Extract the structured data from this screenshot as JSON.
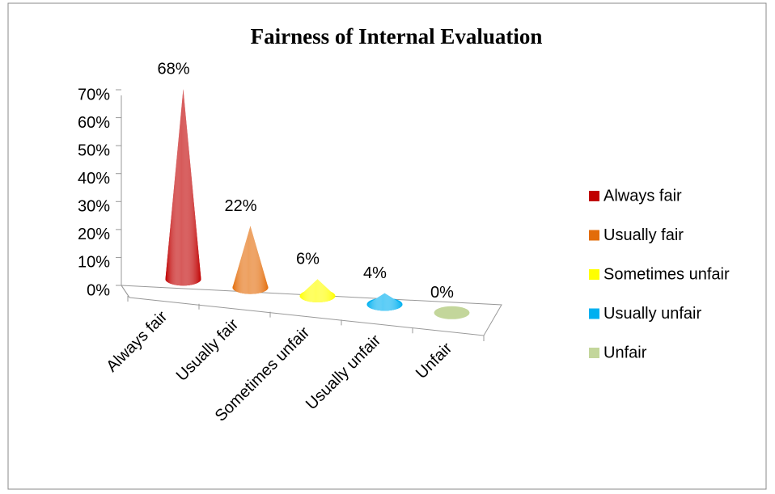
{
  "chart_data": {
    "type": "cone",
    "title": "Fairness of Internal Evaluation",
    "categories": [
      "Always fair",
      "Usually fair",
      "Sometimes unfair",
      "Usually unfair",
      "Unfair"
    ],
    "values": [
      68,
      22,
      6,
      4,
      0
    ],
    "value_labels": [
      "68%",
      "22%",
      "6%",
      "4%",
      "0%"
    ],
    "colors": [
      "#c00000",
      "#e36c09",
      "#ffff00",
      "#00b0f0",
      "#c3d69b"
    ],
    "ylim": [
      0,
      70
    ],
    "yticks": [
      {
        "value": 0,
        "label": "0%"
      },
      {
        "value": 10,
        "label": "10%"
      },
      {
        "value": 20,
        "label": "20%"
      },
      {
        "value": 30,
        "label": "30%"
      },
      {
        "value": 40,
        "label": "40%"
      },
      {
        "value": 50,
        "label": "50%"
      },
      {
        "value": 60,
        "label": "60%"
      },
      {
        "value": 70,
        "label": "70%"
      }
    ],
    "legend": "right"
  }
}
